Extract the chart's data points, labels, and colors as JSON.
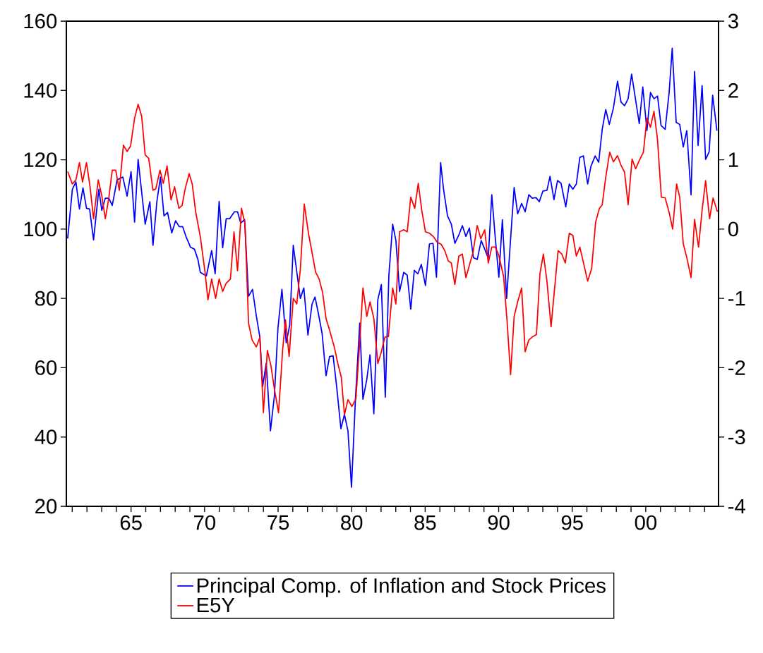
{
  "chart_data": {
    "type": "line",
    "xlim": [
      1960.6,
      2004.95
    ],
    "xticks": [
      {
        "value": 1961,
        "label": null
      },
      {
        "value": 1962,
        "label": null
      },
      {
        "value": 1963,
        "label": null
      },
      {
        "value": 1964,
        "label": null
      },
      {
        "value": 1965,
        "label": "65"
      },
      {
        "value": 1966,
        "label": null
      },
      {
        "value": 1967,
        "label": null
      },
      {
        "value": 1968,
        "label": null
      },
      {
        "value": 1969,
        "label": null
      },
      {
        "value": 1970,
        "label": "70"
      },
      {
        "value": 1971,
        "label": null
      },
      {
        "value": 1972,
        "label": null
      },
      {
        "value": 1973,
        "label": null
      },
      {
        "value": 1974,
        "label": null
      },
      {
        "value": 1975,
        "label": "75"
      },
      {
        "value": 1976,
        "label": null
      },
      {
        "value": 1977,
        "label": null
      },
      {
        "value": 1978,
        "label": null
      },
      {
        "value": 1979,
        "label": null
      },
      {
        "value": 1980,
        "label": "80"
      },
      {
        "value": 1981,
        "label": null
      },
      {
        "value": 1982,
        "label": null
      },
      {
        "value": 1983,
        "label": null
      },
      {
        "value": 1984,
        "label": null
      },
      {
        "value": 1985,
        "label": "85"
      },
      {
        "value": 1986,
        "label": null
      },
      {
        "value": 1987,
        "label": null
      },
      {
        "value": 1988,
        "label": null
      },
      {
        "value": 1989,
        "label": null
      },
      {
        "value": 1990,
        "label": "90"
      },
      {
        "value": 1991,
        "label": null
      },
      {
        "value": 1992,
        "label": null
      },
      {
        "value": 1993,
        "label": null
      },
      {
        "value": 1994,
        "label": null
      },
      {
        "value": 1995,
        "label": "95"
      },
      {
        "value": 1996,
        "label": null
      },
      {
        "value": 1997,
        "label": null
      },
      {
        "value": 1998,
        "label": null
      },
      {
        "value": 1999,
        "label": null
      },
      {
        "value": 2000,
        "label": "00"
      },
      {
        "value": 2001,
        "label": null
      },
      {
        "value": 2002,
        "label": null
      },
      {
        "value": 2003,
        "label": null
      },
      {
        "value": 2004,
        "label": null
      }
    ],
    "ylim": [
      20,
      160
    ],
    "yticks": [
      20,
      40,
      60,
      80,
      100,
      120,
      140,
      160
    ],
    "y2lim": [
      -4,
      3
    ],
    "y2ticks": [
      -4,
      -3,
      -2,
      -1,
      0,
      1,
      2,
      3
    ],
    "legend": "bottom",
    "series": [
      {
        "name": "Principal Comp. of Inflation and Stock Prices",
        "color": "#0000ff",
        "x": [
          1960.69,
          1961.01,
          1961.25,
          1961.49,
          1961.73,
          1961.97,
          1962.18,
          1962.45,
          1962.81,
          1963.01,
          1963.25,
          1963.49,
          1963.72,
          1964.05,
          1964.44,
          1964.73,
          1965.0,
          1965.24,
          1965.48,
          1965.96,
          1966.28,
          1966.49,
          1966.76,
          1967.0,
          1967.24,
          1967.48,
          1967.77,
          1968.03,
          1968.27,
          1968.51,
          1968.75,
          1969.04,
          1969.31,
          1969.55,
          1969.71,
          1970.12,
          1970.48,
          1970.72,
          1970.99,
          1971.23,
          1971.47,
          1971.71,
          1972.03,
          1972.24,
          1972.46,
          1972.72,
          1972.99,
          1973.26,
          1973.52,
          1973.76,
          1973.95,
          1974.19,
          1974.48,
          1974.75,
          1974.99,
          1975.26,
          1975.55,
          1975.79,
          1976.03,
          1976.27,
          1976.51,
          1976.75,
          1977.03,
          1977.31,
          1977.51,
          1977.74,
          1977.99,
          1978.26,
          1978.5,
          1978.74,
          1978.98,
          1979.27,
          1979.51,
          1979.75,
          1979.99,
          1980.26,
          1980.55,
          1980.77,
          1981.03,
          1981.25,
          1981.51,
          1981.78,
          1982.02,
          1982.29,
          1982.53,
          1982.79,
          1983.01,
          1983.26,
          1983.54,
          1983.78,
          1984.02,
          1984.26,
          1984.5,
          1984.74,
          1985.02,
          1985.29,
          1985.53,
          1985.77,
          1986.05,
          1986.25,
          1986.52,
          1986.78,
          1987.02,
          1987.29,
          1987.53,
          1987.77,
          1988.01,
          1988.28,
          1988.54,
          1988.81,
          1989.05,
          1989.29,
          1989.53,
          1989.77,
          1990.01,
          1990.25,
          1990.54,
          1990.78,
          1991.05,
          1991.29,
          1991.56,
          1991.8,
          1992.05,
          1992.28,
          1992.53,
          1992.76,
          1993.01,
          1993.28,
          1993.49,
          1993.76,
          1994.0,
          1994.24,
          1994.56,
          1994.8,
          1995.04,
          1995.28,
          1995.52,
          1995.76,
          1996.05,
          1996.27,
          1996.56,
          1996.8,
          1997.04,
          1997.28,
          1997.52,
          1997.8,
          1998.08,
          1998.32,
          1998.56,
          1998.8,
          1999.04,
          1999.31,
          1999.56,
          1999.8,
          2000.08,
          2000.32,
          2000.56,
          2000.8,
          2001.04,
          2001.32,
          2001.59,
          2001.8,
          2002.07,
          2002.31,
          2002.55,
          2002.79,
          2003.08,
          2003.32,
          2003.56,
          2003.83,
          2004.07,
          2004.31,
          2004.55,
          2004.84
        ],
        "values": [
          97.3,
          111.5,
          113.6,
          105.8,
          111.9,
          106.0,
          105.8,
          96.9,
          111.5,
          105.4,
          108.9,
          108.9,
          106.8,
          114.2,
          115.0,
          109.5,
          116.6,
          102.0,
          120.1,
          101.4,
          107.9,
          95.3,
          108.1,
          115.0,
          103.8,
          104.8,
          98.9,
          102.4,
          100.7,
          100.7,
          97.7,
          94.8,
          94.2,
          91.2,
          87.5,
          86.5,
          93.8,
          87.1,
          108.0,
          94.6,
          103.0,
          103.0,
          105.0,
          105.0,
          101.7,
          102.8,
          80.6,
          82.6,
          74.9,
          68.8,
          54.6,
          61.3,
          41.8,
          52.0,
          71.5,
          82.6,
          67.2,
          72.3,
          95.3,
          87.7,
          80.0,
          83.0,
          69.4,
          78.4,
          80.4,
          75.6,
          69.9,
          57.7,
          63.2,
          63.4,
          54.6,
          42.4,
          46.5,
          41.8,
          25.5,
          51.1,
          72.9,
          50.9,
          56.6,
          63.7,
          46.7,
          79.6,
          84.0,
          51.5,
          86.5,
          101.4,
          96.7,
          82.0,
          87.5,
          86.7,
          76.9,
          88.1,
          87.1,
          89.8,
          83.7,
          95.7,
          95.9,
          86.1,
          119.2,
          111.5,
          103.8,
          101.4,
          95.9,
          98.3,
          101.0,
          97.9,
          100.3,
          91.8,
          91.2,
          96.7,
          94.2,
          91.6,
          109.9,
          97.3,
          86.1,
          102.7,
          80.0,
          95.3,
          112.0,
          104.4,
          107.4,
          105.0,
          109.9,
          108.9,
          109.1,
          107.9,
          111.0,
          111.2,
          115.2,
          108.5,
          114.0,
          113.2,
          106.4,
          113.0,
          111.5,
          113.0,
          120.7,
          121.1,
          113.0,
          118.1,
          121.1,
          119.3,
          128.8,
          134.5,
          130.2,
          134.9,
          142.7,
          136.6,
          135.6,
          137.6,
          144.7,
          137.3,
          130.4,
          141.0,
          128.4,
          139.4,
          137.6,
          138.4,
          129.9,
          128.8,
          139.4,
          152.2,
          130.8,
          130.2,
          123.7,
          128.4,
          109.9,
          145.5,
          124.1,
          141.4,
          120.1,
          122.3,
          138.6,
          128.4
        ]
      },
      {
        "name": "E5Y",
        "color": "#ff0000",
        "axis": "y2",
        "x": [
          1960.69,
          1961.01,
          1961.25,
          1961.49,
          1961.7,
          1961.97,
          1962.21,
          1962.45,
          1962.77,
          1963.01,
          1963.25,
          1963.49,
          1963.72,
          1963.96,
          1964.2,
          1964.48,
          1964.73,
          1964.97,
          1965.24,
          1965.48,
          1965.72,
          1965.96,
          1966.2,
          1966.49,
          1966.68,
          1966.97,
          1967.19,
          1967.45,
          1967.72,
          1967.96,
          1968.25,
          1968.47,
          1968.68,
          1968.95,
          1969.16,
          1969.4,
          1969.71,
          1970.03,
          1970.23,
          1970.48,
          1970.75,
          1970.99,
          1971.23,
          1971.47,
          1971.76,
          1972.0,
          1972.24,
          1972.51,
          1972.75,
          1972.99,
          1973.23,
          1973.52,
          1973.76,
          1974.0,
          1974.27,
          1974.51,
          1974.75,
          1975.03,
          1975.31,
          1975.5,
          1975.75,
          1976.03,
          1976.27,
          1976.51,
          1976.78,
          1977.07,
          1977.31,
          1977.55,
          1977.79,
          1978.03,
          1978.26,
          1978.5,
          1978.82,
          1979.06,
          1979.3,
          1979.51,
          1979.75,
          1980.02,
          1980.29,
          1980.55,
          1980.77,
          1981.03,
          1981.25,
          1981.51,
          1981.78,
          1982.02,
          1982.26,
          1982.5,
          1982.79,
          1983.01,
          1983.26,
          1983.54,
          1983.78,
          1984.02,
          1984.29,
          1984.53,
          1984.77,
          1985.02,
          1985.29,
          1985.57,
          1985.82,
          1986.09,
          1986.33,
          1986.57,
          1986.78,
          1987.02,
          1987.29,
          1987.53,
          1987.77,
          1988.01,
          1988.25,
          1988.54,
          1988.78,
          1989.05,
          1989.29,
          1989.53,
          1989.77,
          1990.01,
          1990.33,
          1990.57,
          1990.81,
          1991.05,
          1991.29,
          1991.56,
          1991.8,
          1992.05,
          1992.33,
          1992.57,
          1992.8,
          1993.04,
          1993.28,
          1993.56,
          1994.04,
          1994.29,
          1994.53,
          1994.8,
          1995.04,
          1995.28,
          1995.52,
          1995.79,
          1996.05,
          1996.32,
          1996.59,
          1996.85,
          1997.04,
          1997.28,
          1997.55,
          1997.8,
          1998.08,
          1998.32,
          1998.56,
          1998.8,
          1999.07,
          1999.31,
          1999.56,
          1999.84,
          2000.08,
          2000.32,
          2000.56,
          2000.8,
          2001.06,
          2001.32,
          2001.59,
          2001.83,
          2002.1,
          2002.31,
          2002.55,
          2002.79,
          2003.08,
          2003.32,
          2003.59,
          2003.83,
          2004.07,
          2004.34,
          2004.58,
          2004.87
        ],
        "values": [
          0.83,
          0.65,
          0.71,
          0.96,
          0.68,
          0.96,
          0.61,
          0.15,
          0.71,
          0.48,
          0.15,
          0.45,
          0.85,
          0.85,
          0.56,
          1.21,
          1.12,
          1.2,
          1.6,
          1.8,
          1.63,
          1.07,
          1.02,
          0.56,
          0.58,
          0.85,
          0.66,
          0.91,
          0.42,
          0.61,
          0.3,
          0.34,
          0.58,
          0.8,
          0.65,
          0.24,
          -0.11,
          -0.62,
          -1.02,
          -0.72,
          -1.0,
          -0.72,
          -0.9,
          -0.78,
          -0.72,
          -0.04,
          -0.6,
          0.3,
          0.07,
          -1.36,
          -1.6,
          -1.7,
          -1.56,
          -2.65,
          -1.75,
          -1.97,
          -2.31,
          -2.65,
          -1.74,
          -1.31,
          -1.84,
          -1.0,
          -1.08,
          -0.58,
          0.36,
          -0.07,
          -0.34,
          -0.62,
          -0.72,
          -0.92,
          -1.29,
          -1.46,
          -1.7,
          -1.94,
          -2.14,
          -2.68,
          -2.46,
          -2.56,
          -2.45,
          -1.63,
          -0.85,
          -1.26,
          -1.05,
          -1.29,
          -1.94,
          -1.77,
          -1.56,
          -1.55,
          -0.85,
          -1.08,
          -0.04,
          -0.01,
          -0.04,
          0.46,
          0.3,
          0.66,
          0.27,
          -0.04,
          -0.06,
          -0.11,
          -0.19,
          -0.22,
          -0.31,
          -0.46,
          -0.49,
          -0.8,
          -0.39,
          -0.36,
          -0.7,
          -0.52,
          -0.34,
          0.05,
          -0.14,
          -0.01,
          -0.49,
          -0.26,
          -0.26,
          -0.38,
          -0.68,
          -1.33,
          -2.1,
          -1.26,
          -1.05,
          -0.85,
          -1.77,
          -1.6,
          -1.55,
          -1.52,
          -0.65,
          -0.36,
          -0.75,
          -1.41,
          -0.31,
          -0.36,
          -0.49,
          -0.06,
          -0.09,
          -0.39,
          -0.26,
          -0.51,
          -0.75,
          -0.57,
          0.1,
          0.3,
          0.35,
          0.75,
          1.11,
          0.97,
          1.06,
          0.92,
          0.82,
          0.35,
          1.01,
          0.87,
          0.99,
          1.11,
          1.6,
          1.47,
          1.7,
          1.29,
          0.46,
          0.45,
          0.24,
          0.0,
          0.65,
          0.46,
          -0.21,
          -0.41,
          -0.7,
          0.14,
          -0.26,
          0.27,
          0.7,
          0.15,
          0.45,
          0.25
        ]
      }
    ]
  }
}
